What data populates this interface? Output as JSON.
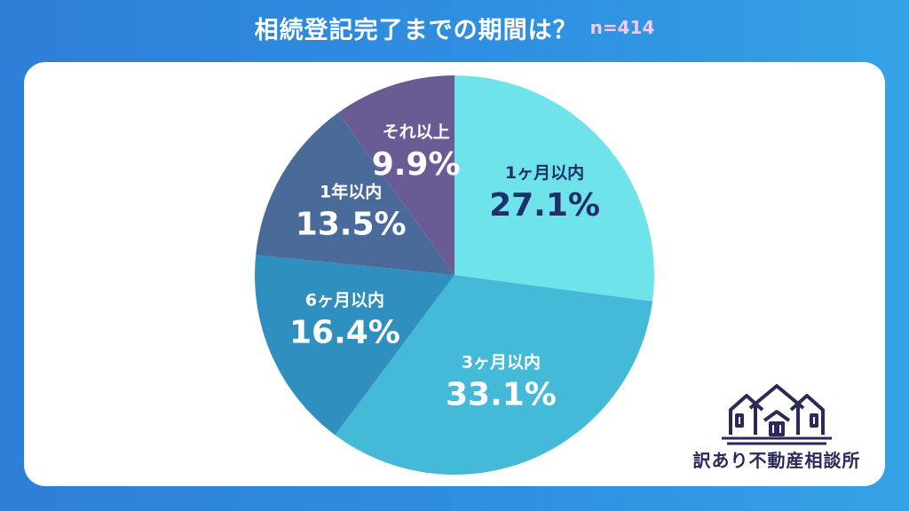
{
  "header": {
    "title": "相続登記完了までの期間は？",
    "sample_size": "n=414"
  },
  "chart_data": {
    "type": "pie",
    "title": "相続登記完了までの期間は？",
    "categories": [
      "1ヶ月以内",
      "3ヶ月以内",
      "6ヶ月以内",
      "1年以内",
      "それ以上"
    ],
    "values": [
      27.1,
      33.1,
      16.4,
      13.5,
      9.9
    ],
    "value_labels": [
      "27.1%",
      "33.1%",
      "16.4%",
      "13.5%",
      "9.9%"
    ],
    "colors": [
      "#6ee4ea",
      "#45b9d8",
      "#2f8fbf",
      "#4a6b9a",
      "#6a5b94"
    ],
    "label_colors": [
      "#1f2f6a",
      "#ffffff",
      "#ffffff",
      "#ffffff",
      "#ffffff"
    ],
    "start_angle_deg": 0,
    "direction": "clockwise"
  },
  "logo": {
    "text": "訳あり不動産相談所",
    "color": "#2a2a5a"
  }
}
